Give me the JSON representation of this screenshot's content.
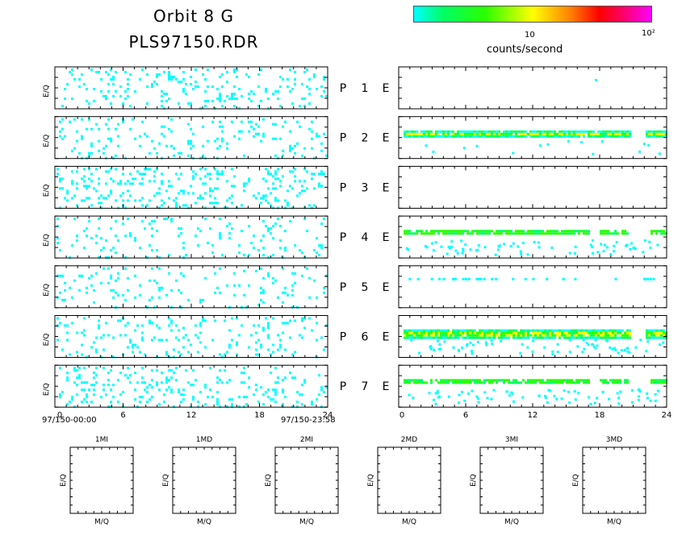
{
  "header": {
    "title_line1": "Orbit  8  G",
    "title_line2": "PLS97150.RDR"
  },
  "colorbar": {
    "label": "counts/second",
    "tick1": "10",
    "tick2": "10²",
    "colors": [
      "#00ffff",
      "#00ff66",
      "#2aff00",
      "#ffff00",
      "#ff8000",
      "#ff0000",
      "#ff0066",
      "#ff00ff"
    ]
  },
  "time_axis": {
    "start_label": "97/150-00:00",
    "end_label": "97/150-23:58"
  },
  "mass_panels": [
    "1MI",
    "1MD",
    "2MI",
    "2MD",
    "3MI",
    "3MD"
  ],
  "mass_axis": {
    "ylabel": "E/Q",
    "xlabel": "M/Q"
  },
  "chart_data": {
    "type": "heatmap",
    "title": "Orbit 8 G  PLS97150.RDR",
    "ylabel": "E/Q",
    "xlim": [
      0,
      24
    ],
    "xticks": [
      0,
      6,
      12,
      18,
      24
    ],
    "colorbar_label": "counts/second",
    "rows": [
      {
        "label": "P  1  E",
        "P": "P",
        "num": "1",
        "E": "E",
        "left_density": 0.1,
        "right_band": "single_point"
      },
      {
        "label": "P  2  E",
        "P": "P",
        "num": "2",
        "E": "E",
        "left_density": 0.09,
        "right_band": "strong"
      },
      {
        "label": "P  3  E",
        "P": "P",
        "num": "3",
        "E": "E",
        "left_density": 0.13,
        "right_band": "none"
      },
      {
        "label": "P  4  E",
        "P": "P",
        "num": "4",
        "E": "E",
        "left_density": 0.07,
        "right_band": "medium"
      },
      {
        "label": "P  5  E",
        "P": "P",
        "num": "5",
        "E": "E",
        "left_density": 0.06,
        "right_band": "sparse"
      },
      {
        "label": "P  6  E",
        "P": "P",
        "num": "6",
        "E": "E",
        "left_density": 0.09,
        "right_band": "strong_wide"
      },
      {
        "label": "P  7  E",
        "P": "P",
        "num": "7",
        "E": "E",
        "left_density": 0.12,
        "right_band": "medium_wide"
      }
    ]
  }
}
